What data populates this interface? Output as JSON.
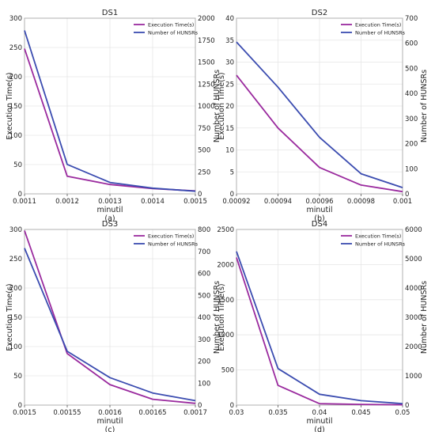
{
  "colors": {
    "execution_time": "#9a2a9e",
    "hunsrs": "#3b4cb0",
    "frame": "#b0b0b0",
    "grid": "#e6e6e6"
  },
  "chart_data": [
    {
      "type": "line",
      "title": "DS1",
      "caption": "(a)",
      "xlabel": "minutil",
      "ylabel": "Execution Time(s)",
      "y2label": "Number of HUNSRs",
      "x": [
        0.0011,
        0.0012,
        0.0013,
        0.0014,
        0.0015
      ],
      "xticks": [
        "0.0011",
        "0.0012",
        "0.0013",
        "0.0014",
        "0.0015"
      ],
      "xlim": [
        0.0011,
        0.0015
      ],
      "ylim": [
        0,
        300
      ],
      "yticks": [
        "0",
        "50",
        "100",
        "150",
        "200",
        "250",
        "300"
      ],
      "y2lim": [
        0,
        2000
      ],
      "y2ticks": [
        "0",
        "250",
        "500",
        "750",
        "1000",
        "1250",
        "1500",
        "1750",
        "2000"
      ],
      "series": [
        {
          "name": "Execution Time(s)",
          "axis": "left",
          "values": [
            248,
            30,
            16,
            9,
            5
          ]
        },
        {
          "name": "Number of HUNSRs",
          "axis": "right",
          "values": [
            1860,
            335,
            130,
            65,
            30
          ]
        }
      ],
      "legend": "top-right",
      "grid": true
    },
    {
      "type": "line",
      "title": "DS2",
      "caption": "(b)",
      "xlabel": "minutil",
      "ylabel": "Execution Time(s)",
      "y2label": "Number of HUNSRs",
      "x": [
        0.00092,
        0.00094,
        0.00096,
        0.00098,
        0.001
      ],
      "xticks": [
        "0.00092",
        "0.00094",
        "0.00096",
        "0.00098",
        "0.001"
      ],
      "xlim": [
        0.00092,
        0.001
      ],
      "ylim": [
        0,
        40
      ],
      "yticks": [
        "0",
        "5",
        "10",
        "15",
        "20",
        "25",
        "30",
        "35",
        "40"
      ],
      "y2lim": [
        0,
        700
      ],
      "y2ticks": [
        "0",
        "100",
        "200",
        "300",
        "400",
        "500",
        "600",
        "700"
      ],
      "series": [
        {
          "name": "Execution Time(s)",
          "axis": "left",
          "values": [
            27,
            15,
            6,
            2,
            0.5
          ]
        },
        {
          "name": "Number of HUNSRs",
          "axis": "right",
          "values": [
            605,
            425,
            225,
            80,
            25
          ]
        }
      ],
      "legend": "top-right",
      "grid": true
    },
    {
      "type": "line",
      "title": "DS3",
      "caption": "(c)",
      "xlabel": "minutil",
      "ylabel": "Execution Time(s)",
      "y2label": "Number of HUNSRs",
      "x": [
        0.0015,
        0.00155,
        0.0016,
        0.00165,
        0.0017
      ],
      "xticks": [
        "0.0015",
        "0.00155",
        "0.0016",
        "0.00165",
        "0.0017"
      ],
      "xlim": [
        0.0015,
        0.0017
      ],
      "ylim": [
        0,
        300
      ],
      "yticks": [
        "0",
        "50",
        "100",
        "150",
        "200",
        "250",
        "300"
      ],
      "y2lim": [
        0,
        800
      ],
      "y2ticks": [
        "0",
        "100",
        "200",
        "300",
        "400",
        "500",
        "600",
        "700",
        "800"
      ],
      "series": [
        {
          "name": "Execution Time(s)",
          "axis": "left",
          "values": [
            298,
            88,
            35,
            10,
            3
          ]
        },
        {
          "name": "Number of HUNSRs",
          "axis": "right",
          "values": [
            715,
            245,
            125,
            55,
            20
          ]
        }
      ],
      "legend": "top-right",
      "grid": true
    },
    {
      "type": "line",
      "title": "DS4",
      "caption": "(d)",
      "xlabel": "minutil",
      "ylabel": "Execution Time(s)",
      "y2label": "Number of HUNSRs",
      "x": [
        0.03,
        0.035,
        0.04,
        0.045,
        0.05
      ],
      "xticks": [
        "0.03",
        "0.035",
        "0.04",
        "0.045",
        "0.05"
      ],
      "xlim": [
        0.03,
        0.05
      ],
      "ylim": [
        0,
        2500
      ],
      "yticks": [
        "0",
        "500",
        "1000",
        "1500",
        "2000",
        "2500"
      ],
      "y2lim": [
        0,
        6000
      ],
      "y2ticks": [
        "0",
        "1000",
        "2000",
        "3000",
        "4000",
        "5000",
        "6000"
      ],
      "series": [
        {
          "name": "Execution Time(s)",
          "axis": "left",
          "values": [
            2100,
            280,
            20,
            10,
            5
          ]
        },
        {
          "name": "Number of HUNSRs",
          "axis": "right",
          "values": [
            5250,
            1250,
            370,
            150,
            50
          ]
        }
      ],
      "legend": "top-right",
      "grid": true
    }
  ]
}
